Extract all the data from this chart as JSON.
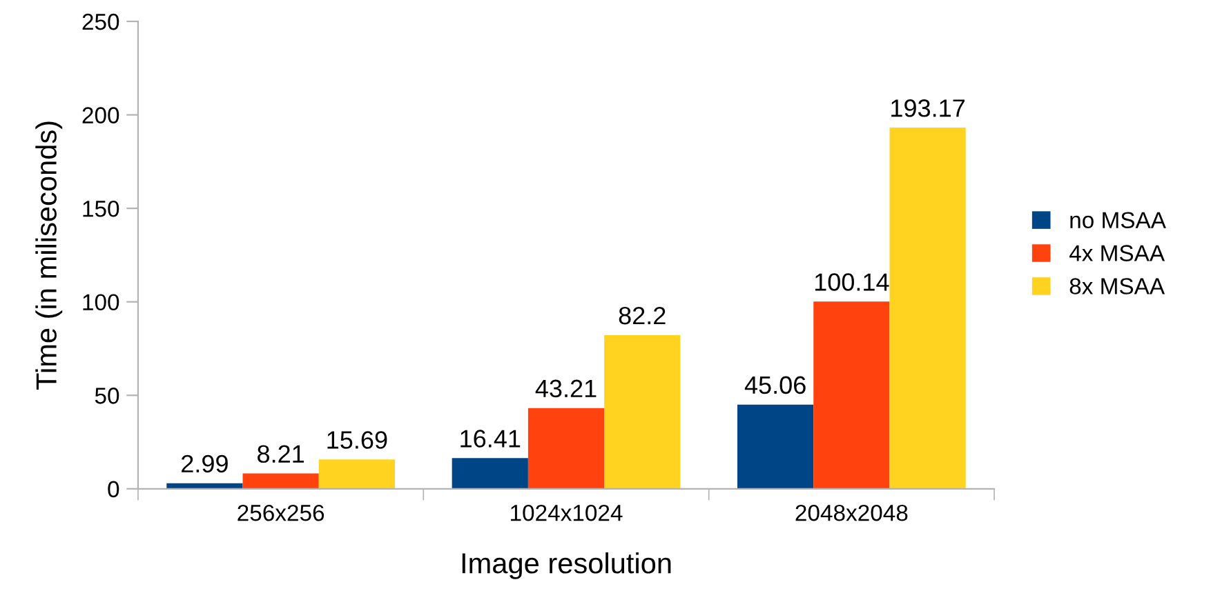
{
  "chart_data": {
    "type": "bar",
    "xlabel": "Image resolution",
    "ylabel": "Time (in miliseconds)",
    "categories": [
      "256x256",
      "1024x1024",
      "2048x2048"
    ],
    "series": [
      {
        "name": "no MSAA",
        "color": "#004586",
        "values": [
          2.99,
          16.41,
          45.06
        ]
      },
      {
        "name": "4x MSAA",
        "color": "#ff420e",
        "values": [
          8.21,
          43.21,
          100.14
        ]
      },
      {
        "name": "8x MSAA",
        "color": "#ffd320",
        "values": [
          15.69,
          82.2,
          193.17
        ]
      }
    ],
    "ylim": [
      0,
      250
    ],
    "yticks": [
      0,
      50,
      100,
      150,
      200,
      250
    ],
    "grid": false,
    "legend": "right",
    "data_labels": true
  }
}
